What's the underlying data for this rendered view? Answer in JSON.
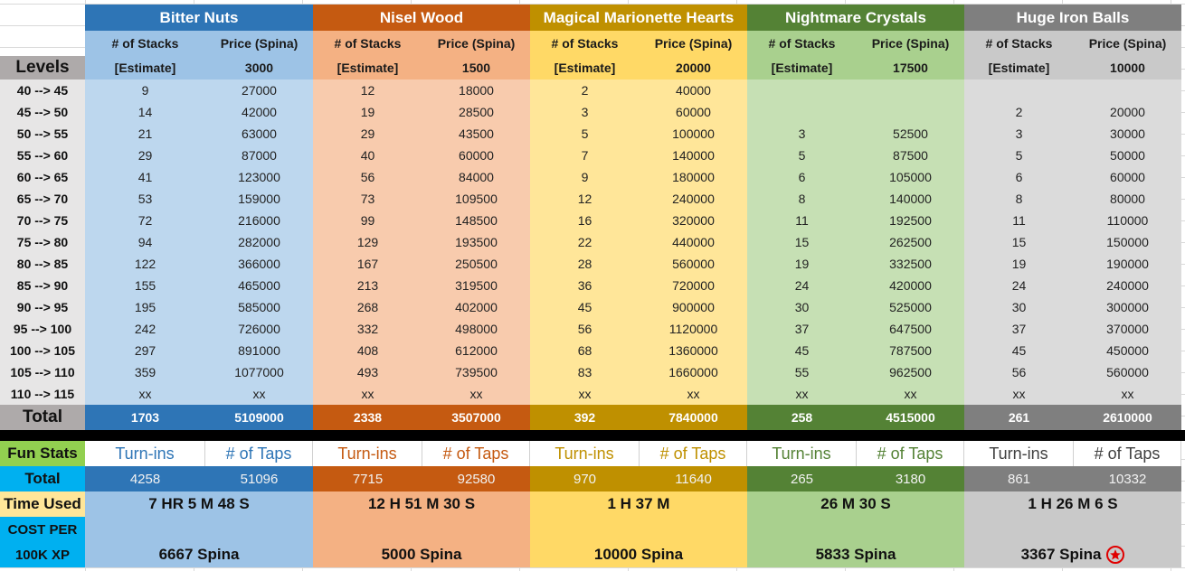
{
  "levels_header": "Levels",
  "total_label": "Total",
  "levels": [
    "40 --> 45",
    "45 --> 50",
    "50 --> 55",
    "55 --> 60",
    "60 --> 65",
    "65 --> 70",
    "70 -->  75",
    "75 --> 80",
    "80 --> 85",
    "85 --> 90",
    "90 --> 95",
    "95 --> 100",
    "100 --> 105",
    "105 --> 110",
    "110 --> 115"
  ],
  "items": [
    {
      "name": "Bitter Nuts",
      "col1_header": "# of Stacks",
      "col2_header": "Price (Spina)",
      "col1_sub": "[Estimate]",
      "col2_sub": "3000",
      "stacks": [
        "9",
        "14",
        "21",
        "29",
        "41",
        "53",
        "72",
        "94",
        "122",
        "155",
        "195",
        "242",
        "297",
        "359",
        "xx"
      ],
      "prices": [
        "27000",
        "42000",
        "63000",
        "87000",
        "123000",
        "159000",
        "216000",
        "282000",
        "366000",
        "465000",
        "585000",
        "726000",
        "891000",
        "1077000",
        "xx"
      ],
      "total_stacks": "1703",
      "total_price": "5109000",
      "turnins_label": "Turn-ins",
      "taps_label": "# of Taps",
      "turnins": "4258",
      "taps": "51096",
      "time_used": "7 HR 5 M 48 S",
      "cost_per_100k": "6667 Spina",
      "colors": {
        "title": "#2e75b6",
        "header": "#9dc3e6",
        "body": "#bdd7ee",
        "total": "#2e75b6",
        "stats": "#9dc3e6",
        "fun_text": "#2e75b6"
      }
    },
    {
      "name": "Nisel Wood",
      "col1_header": "# of Stacks",
      "col2_header": "Price (Spina)",
      "col1_sub": "[Estimate]",
      "col2_sub": "1500",
      "stacks": [
        "12",
        "19",
        "29",
        "40",
        "56",
        "73",
        "99",
        "129",
        "167",
        "213",
        "268",
        "332",
        "408",
        "493",
        "xx"
      ],
      "prices": [
        "18000",
        "28500",
        "43500",
        "60000",
        "84000",
        "109500",
        "148500",
        "193500",
        "250500",
        "319500",
        "402000",
        "498000",
        "612000",
        "739500",
        "xx"
      ],
      "total_stacks": "2338",
      "total_price": "3507000",
      "turnins_label": "Turn-ins",
      "taps_label": "# of Taps",
      "turnins": "7715",
      "taps": "92580",
      "time_used": "12 H 51 M 30 S",
      "cost_per_100k": "5000 Spina",
      "colors": {
        "title": "#c55a11",
        "header": "#f4b183",
        "body": "#f8cbad",
        "total": "#c55a11",
        "stats": "#f4b183",
        "fun_text": "#c55a11"
      }
    },
    {
      "name": "Magical Marionette Hearts",
      "col1_header": "# of Stacks",
      "col2_header": "Price (Spina)",
      "col1_sub": "[Estimate]",
      "col2_sub": "20000",
      "stacks": [
        "2",
        "3",
        "5",
        "7",
        "9",
        "12",
        "16",
        "22",
        "28",
        "36",
        "45",
        "56",
        "68",
        "83",
        "xx"
      ],
      "prices": [
        "40000",
        "60000",
        "100000",
        "140000",
        "180000",
        "240000",
        "320000",
        "440000",
        "560000",
        "720000",
        "900000",
        "1120000",
        "1360000",
        "1660000",
        "xx"
      ],
      "total_stacks": "392",
      "total_price": "7840000",
      "turnins_label": "Turn-ins",
      "taps_label": "# of Taps",
      "turnins": "970",
      "taps": "11640",
      "time_used": "1 H 37 M",
      "cost_per_100k": "10000 Spina",
      "colors": {
        "title": "#bf9000",
        "header": "#ffd966",
        "body": "#ffe699",
        "total": "#bf9000",
        "stats": "#ffd966",
        "fun_text": "#bf9000"
      }
    },
    {
      "name": "Nightmare Crystals",
      "col1_header": "# of Stacks",
      "col2_header": "Price (Spina)",
      "col1_sub": "[Estimate]",
      "col2_sub": "17500",
      "stacks": [
        "",
        "",
        "3",
        "5",
        "6",
        "8",
        "11",
        "15",
        "19",
        "24",
        "30",
        "37",
        "45",
        "55",
        "xx"
      ],
      "prices": [
        "",
        "",
        "52500",
        "87500",
        "105000",
        "140000",
        "192500",
        "262500",
        "332500",
        "420000",
        "525000",
        "647500",
        "787500",
        "962500",
        "xx"
      ],
      "total_stacks": "258",
      "total_price": "4515000",
      "turnins_label": "Turn-ins",
      "taps_label": "# of Taps",
      "turnins": "265",
      "taps": "3180",
      "time_used": "26 M 30 S",
      "cost_per_100k": "5833 Spina",
      "colors": {
        "title": "#548235",
        "header": "#a9d08e",
        "body": "#c6e0b4",
        "total": "#548235",
        "stats": "#a9d08e",
        "fun_text": "#548235"
      }
    },
    {
      "name": "Huge Iron Balls",
      "col1_header": "# of Stacks",
      "col2_header": "Price (Spina)",
      "col1_sub": "[Estimate]",
      "col2_sub": "10000",
      "stacks": [
        "",
        "2",
        "3",
        "5",
        "6",
        "8",
        "11",
        "15",
        "19",
        "24",
        "30",
        "37",
        "45",
        "56",
        "xx"
      ],
      "prices": [
        "",
        "20000",
        "30000",
        "50000",
        "60000",
        "80000",
        "110000",
        "150000",
        "190000",
        "240000",
        "300000",
        "370000",
        "450000",
        "560000",
        "xx"
      ],
      "total_stacks": "261",
      "total_price": "2610000",
      "turnins_label": "Turn-ins",
      "taps_label": "# of Taps",
      "turnins": "861",
      "taps": "10332",
      "time_used": "1 H 26 M 6 S",
      "cost_per_100k": "3367 Spina",
      "best_marker": "star-icon",
      "colors": {
        "title": "#7f7f7f",
        "header": "#c9c9c9",
        "body": "#dbdbdb",
        "total": "#7f7f7f",
        "stats": "#c9c9c9",
        "fun_text": "#404040"
      }
    }
  ],
  "fun_stats_label": "Fun Stats",
  "fun_total_label": "Total",
  "time_used_label": "Time Used",
  "cost_label_line1": "COST PER",
  "cost_label_line2": "100K XP",
  "label_colors": {
    "levels": "#aeaaaa",
    "level_rows": "#e7e6e6",
    "fun_stats": "#92d050",
    "fun_total": "#00b0f0",
    "time_used": "#ffe699",
    "cost": "#00b0f0",
    "divider": "#000000"
  }
}
